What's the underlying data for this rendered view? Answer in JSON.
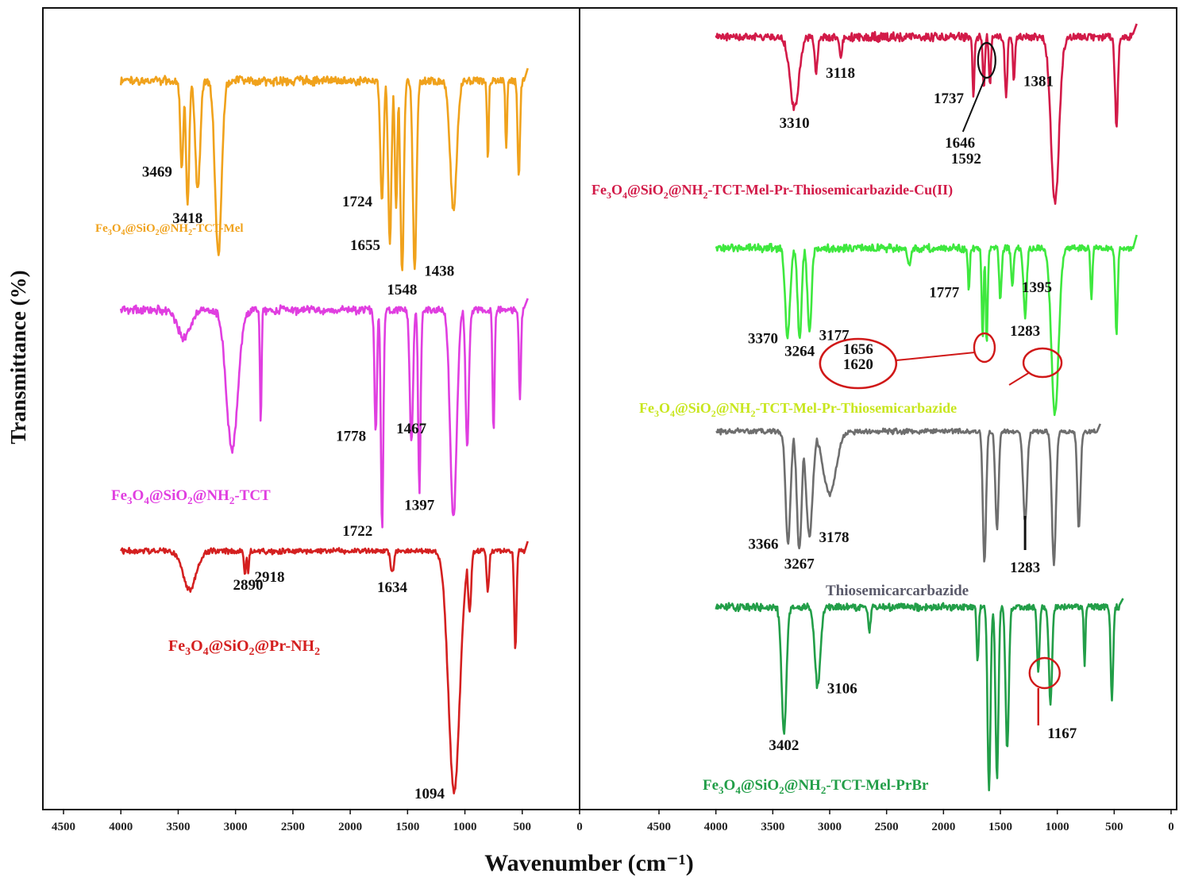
{
  "chart_data": {
    "type": "line",
    "title": "",
    "xlabel": "Wavenumber (cm⁻¹)",
    "ylabel": "Transmittance (%)",
    "xlim": [
      4500,
      0
    ],
    "xticks": [
      4500,
      4000,
      3500,
      3000,
      2500,
      2000,
      1500,
      1000,
      500,
      0
    ],
    "grid": false,
    "panels": [
      {
        "name": "left",
        "series": [
          {
            "name": "Fe3O4@SiO2@NH2-TCT-Mel",
            "label_parts": [
              [
                "Fe",
                ""
              ],
              [
                "3",
                "sub"
              ],
              [
                "O",
                ""
              ],
              [
                "4",
                "sub"
              ],
              [
                "@SiO",
                ""
              ],
              [
                "2",
                "sub"
              ],
              [
                "@NH",
                ""
              ],
              [
                "2",
                "sub"
              ],
              [
                "-TCT-Mel",
                ""
              ]
            ],
            "color": "#f0a21c",
            "baseline": 0.04,
            "noise": 0.03,
            "xrange": [
              4000,
              480
            ],
            "bands": [
              [
                3469,
                0.45,
                18
              ],
              [
                3418,
                0.62,
                20
              ],
              [
                3330,
                0.55,
                30
              ],
              [
                3150,
                0.88,
                40
              ],
              [
                1724,
                0.6,
                20
              ],
              [
                1655,
                0.82,
                20
              ],
              [
                1600,
                0.65,
                15
              ],
              [
                1548,
                0.98,
                20
              ],
              [
                1438,
                0.95,
                22
              ],
              [
                1100,
                0.65,
                40
              ],
              [
                800,
                0.4,
                10
              ],
              [
                640,
                0.35,
                10
              ],
              [
                530,
                0.5,
                14
              ]
            ],
            "peaks": [
              {
                "text": "3469",
                "x": 3469,
                "pos": "left"
              },
              {
                "text": "3418",
                "x": 3418,
                "pos": "below"
              },
              {
                "text": "1724",
                "x": 1724,
                "pos": "left"
              },
              {
                "text": "1655",
                "x": 1655,
                "pos": "left"
              },
              {
                "text": "1548",
                "x": 1548,
                "pos": "below"
              },
              {
                "text": "1438",
                "x": 1438,
                "pos": "right"
              }
            ]
          },
          {
            "name": "Fe3O4@SiO2@NH2-TCT",
            "label_parts": [
              [
                "Fe",
                ""
              ],
              [
                "3",
                "sub"
              ],
              [
                "O",
                ""
              ],
              [
                "4",
                "sub"
              ],
              [
                "@SiO",
                ""
              ],
              [
                "2",
                "sub"
              ],
              [
                "@NH",
                ""
              ],
              [
                "2",
                "sub"
              ],
              [
                "-TCT",
                ""
              ]
            ],
            "color": "#e03ee0",
            "baseline": 0.03,
            "noise": 0.025,
            "xrange": [
              4000,
              480
            ],
            "bands": [
              [
                3450,
                0.12,
                80
              ],
              [
                3030,
                0.62,
                70
              ],
              [
                2780,
                0.5,
                10
              ],
              [
                1778,
                0.55,
                15
              ],
              [
                1722,
                0.97,
                15
              ],
              [
                1467,
                0.58,
                20
              ],
              [
                1397,
                0.8,
                15
              ],
              [
                1100,
                0.92,
                40
              ],
              [
                980,
                0.6,
                20
              ],
              [
                750,
                0.55,
                12
              ],
              [
                520,
                0.4,
                12
              ]
            ],
            "peaks": [
              {
                "text": "1778",
                "x": 1778,
                "pos": "left"
              },
              {
                "text": "1722",
                "x": 1722,
                "pos": "left"
              },
              {
                "text": "1467",
                "x": 1467,
                "pos": "above"
              },
              {
                "text": "1397",
                "x": 1397,
                "pos": "below"
              }
            ]
          },
          {
            "name": "Fe3O4@SiO2@Pr-NH2",
            "label_parts": [
              [
                "Fe",
                ""
              ],
              [
                "3",
                "sub"
              ],
              [
                "O",
                ""
              ],
              [
                "4",
                "sub"
              ],
              [
                "@SiO",
                ""
              ],
              [
                "2",
                "sub"
              ],
              [
                "@Pr-NH",
                ""
              ],
              [
                "2",
                "sub"
              ]
            ],
            "color": "#d42020",
            "baseline": 0.02,
            "noise": 0.015,
            "xrange": [
              4000,
              480
            ],
            "bands": [
              [
                3400,
                0.16,
                80
              ],
              [
                2918,
                0.1,
                12
              ],
              [
                2890,
                0.08,
                12
              ],
              [
                1634,
                0.09,
                20
              ],
              [
                1094,
                0.98,
                70
              ],
              [
                960,
                0.25,
                20
              ],
              [
                800,
                0.16,
                15
              ],
              [
                560,
                0.4,
                14
              ]
            ],
            "peaks": [
              {
                "text": "2890",
                "x": 2890,
                "pos": "below"
              },
              {
                "text": "2918",
                "x": 2918,
                "pos": "right"
              },
              {
                "text": "1634",
                "x": 1634,
                "pos": "below"
              },
              {
                "text": "1094",
                "x": 1094,
                "pos": "left"
              }
            ]
          }
        ]
      },
      {
        "name": "right",
        "series": [
          {
            "name": "Fe3O4@SiO2@NH2-TCT-Mel-Pr-Thiosemicarbazide-Cu(II)",
            "label_parts": [
              [
                "Fe",
                ""
              ],
              [
                "3",
                "sub"
              ],
              [
                "O",
                ""
              ],
              [
                "4",
                "sub"
              ],
              [
                "@SiO",
                ""
              ],
              [
                "2",
                "sub"
              ],
              [
                "@NH",
                ""
              ],
              [
                "2",
                "sub"
              ],
              [
                "-TCT-Mel-Pr-Thiosemicarbazide-Cu(II)",
                ""
              ]
            ],
            "color": "#d21a48",
            "baseline": 0.05,
            "noise": 0.035,
            "xrange": [
              4000,
              330
            ],
            "bands": [
              [
                3310,
                0.42,
                55
              ],
              [
                3118,
                0.2,
                20
              ],
              [
                2900,
                0.12,
                15
              ],
              [
                1737,
                0.35,
                12
              ],
              [
                1646,
                0.3,
                12
              ],
              [
                1592,
                0.28,
                12
              ],
              [
                1450,
                0.35,
                15
              ],
              [
                1381,
                0.25,
                12
              ],
              [
                1020,
                0.97,
                50
              ],
              [
                480,
                0.52,
                18
              ]
            ],
            "peaks": [
              {
                "text": "3310",
                "x": 3310,
                "pos": "below"
              },
              {
                "text": "3118",
                "x": 3118,
                "pos": "right"
              },
              {
                "text": "1737",
                "x": 1737,
                "pos": "left"
              },
              {
                "text": "1381",
                "x": 1381,
                "pos": "right"
              },
              {
                "text": "1646",
                "x": 1646,
                "pos": "callout"
              },
              {
                "text": "1592",
                "x": 1592,
                "pos": "callout2"
              }
            ]
          },
          {
            "name": "Fe3O4@SiO2@NH2-TCT-Mel-Pr-Thiosemicarbazide",
            "label_parts": [
              [
                "Fe",
                ""
              ],
              [
                "3",
                "sub"
              ],
              [
                "O",
                ""
              ],
              [
                "4",
                "sub"
              ],
              [
                "@SiO",
                ""
              ],
              [
                "2",
                "sub"
              ],
              [
                "@NH",
                ""
              ],
              [
                "2",
                "sub"
              ],
              [
                "-TCT-Mel-Pr-Thiosemicarbazide",
                ""
              ]
            ],
            "color": "#3ee83e",
            "label_color": "#c8e61e",
            "baseline": 0.05,
            "noise": 0.03,
            "xrange": [
              4000,
              330
            ],
            "bands": [
              [
                3370,
                0.52,
                30
              ],
              [
                3264,
                0.52,
                25
              ],
              [
                3177,
                0.5,
                25
              ],
              [
                2300,
                0.1,
                20
              ],
              [
                1777,
                0.25,
                12
              ],
              [
                1656,
                0.52,
                12
              ],
              [
                1620,
                0.56,
                12
              ],
              [
                1500,
                0.3,
                15
              ],
              [
                1395,
                0.22,
                15
              ],
              [
                1283,
                0.4,
                20
              ],
              [
                1020,
                0.97,
                45
              ],
              [
                700,
                0.3,
                12
              ],
              [
                480,
                0.5,
                15
              ]
            ],
            "peaks": [
              {
                "text": "3370",
                "x": 3370,
                "pos": "left"
              },
              {
                "text": "3264",
                "x": 3264,
                "pos": "below"
              },
              {
                "text": "3177",
                "x": 3177,
                "pos": "right"
              },
              {
                "text": "1777",
                "x": 1777,
                "pos": "left"
              },
              {
                "text": "1395",
                "x": 1395,
                "pos": "right"
              },
              {
                "text": "1283",
                "x": 1283,
                "pos": "below"
              },
              {
                "text": "1656",
                "x": 1656,
                "pos": "oval"
              },
              {
                "text": "1620",
                "x": 1620,
                "pos": "oval2"
              }
            ]
          },
          {
            "name": "Thiosemicarcarbazide",
            "label_parts": [
              [
                "Thiosemicarcarbazide",
                ""
              ]
            ],
            "color": "#6e6e6e",
            "label_color": "#5a5a6a",
            "baseline": 0.02,
            "noise": 0.025,
            "xrange": [
              4000,
              650
            ],
            "bands": [
              [
                3366,
                0.8,
                30
              ],
              [
                3267,
                0.85,
                30
              ],
              [
                3178,
                0.75,
                40
              ],
              [
                3000,
                0.45,
                80
              ],
              [
                1640,
                0.95,
                20
              ],
              [
                1530,
                0.7,
                20
              ],
              [
                1283,
                0.65,
                25
              ],
              [
                1030,
                0.95,
                25
              ],
              [
                810,
                0.7,
                20
              ]
            ],
            "peaks": [
              {
                "text": "3366",
                "x": 3366,
                "pos": "left"
              },
              {
                "text": "3267",
                "x": 3267,
                "pos": "below"
              },
              {
                "text": "3178",
                "x": 3178,
                "pos": "right"
              },
              {
                "text": "1283",
                "x": 1283,
                "pos": "tick"
              }
            ]
          },
          {
            "name": "Fe3O4@SiO2@NH2-TCT-Mel-PrBr",
            "label_parts": [
              [
                "Fe",
                ""
              ],
              [
                "3",
                "sub"
              ],
              [
                "O",
                ""
              ],
              [
                "4",
                "sub"
              ],
              [
                "@SiO",
                ""
              ],
              [
                "2",
                "sub"
              ],
              [
                "@NH",
                ""
              ],
              [
                "2",
                "sub"
              ],
              [
                "-TCT-Mel-PrBr",
                ""
              ]
            ],
            "color": "#229e48",
            "baseline": 0.02,
            "noise": 0.025,
            "xrange": [
              4000,
              450
            ],
            "bands": [
              [
                3402,
                0.65,
                30
              ],
              [
                3106,
                0.42,
                35
              ],
              [
                2650,
                0.12,
                15
              ],
              [
                1700,
                0.3,
                12
              ],
              [
                1600,
                0.96,
                18
              ],
              [
                1530,
                0.9,
                18
              ],
              [
                1440,
                0.75,
                20
              ],
              [
                1167,
                0.35,
                15
              ],
              [
                1060,
                0.5,
                20
              ],
              [
                760,
                0.3,
                10
              ],
              [
                520,
                0.5,
                15
              ]
            ],
            "peaks": [
              {
                "text": "3402",
                "x": 3402,
                "pos": "below"
              },
              {
                "text": "3106",
                "x": 3106,
                "pos": "right"
              },
              {
                "text": "1167",
                "x": 1167,
                "pos": "circle"
              }
            ]
          }
        ]
      }
    ]
  }
}
